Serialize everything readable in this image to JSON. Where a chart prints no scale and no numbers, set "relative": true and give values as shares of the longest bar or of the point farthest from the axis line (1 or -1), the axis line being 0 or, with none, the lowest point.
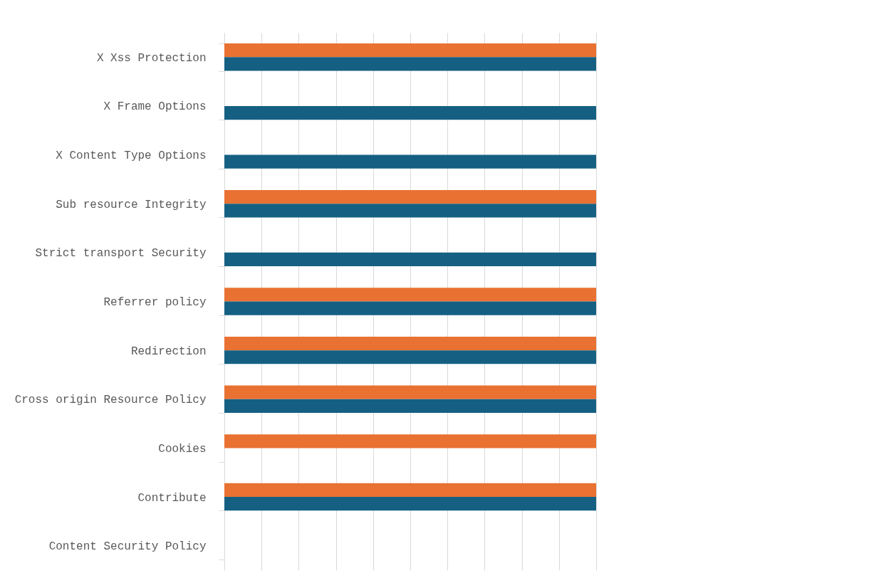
{
  "chart_data": {
    "type": "bar",
    "orientation": "horizontal",
    "relative": true,
    "grid": "x",
    "legend": false,
    "categories": [
      "X Xss Protection",
      "X Frame Options",
      "X Content Type Options",
      "Sub resource Integrity",
      "Strict transport Security",
      "Referrer policy",
      "Redirection",
      "Cross origin Resource Policy",
      "Cookies",
      "Contribute",
      "Content Security Policy"
    ],
    "series": [
      {
        "color": "#e97132",
        "values": [
          1,
          null,
          null,
          1,
          null,
          1,
          1,
          1,
          1,
          1,
          null
        ]
      },
      {
        "color": "#156082",
        "values": [
          1,
          1,
          1,
          1,
          1,
          1,
          1,
          1,
          null,
          1,
          null
        ]
      }
    ]
  }
}
